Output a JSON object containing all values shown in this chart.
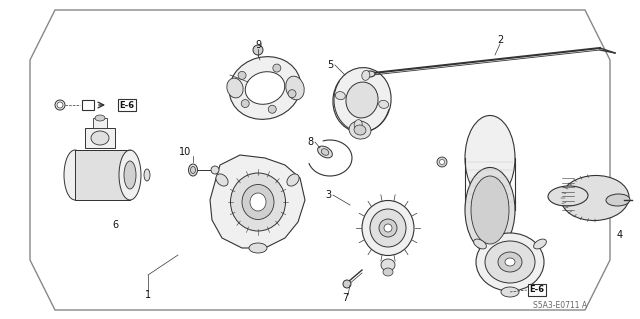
{
  "bg_color": "#ffffff",
  "line_color": "#333333",
  "text_color": "#111111",
  "footer_text": "S5A3-E0711 A",
  "part_fill": "#f0f0f0",
  "part_fill2": "#e0e0e0",
  "part_fill3": "#d0d0d0",
  "border_color": "#999999"
}
